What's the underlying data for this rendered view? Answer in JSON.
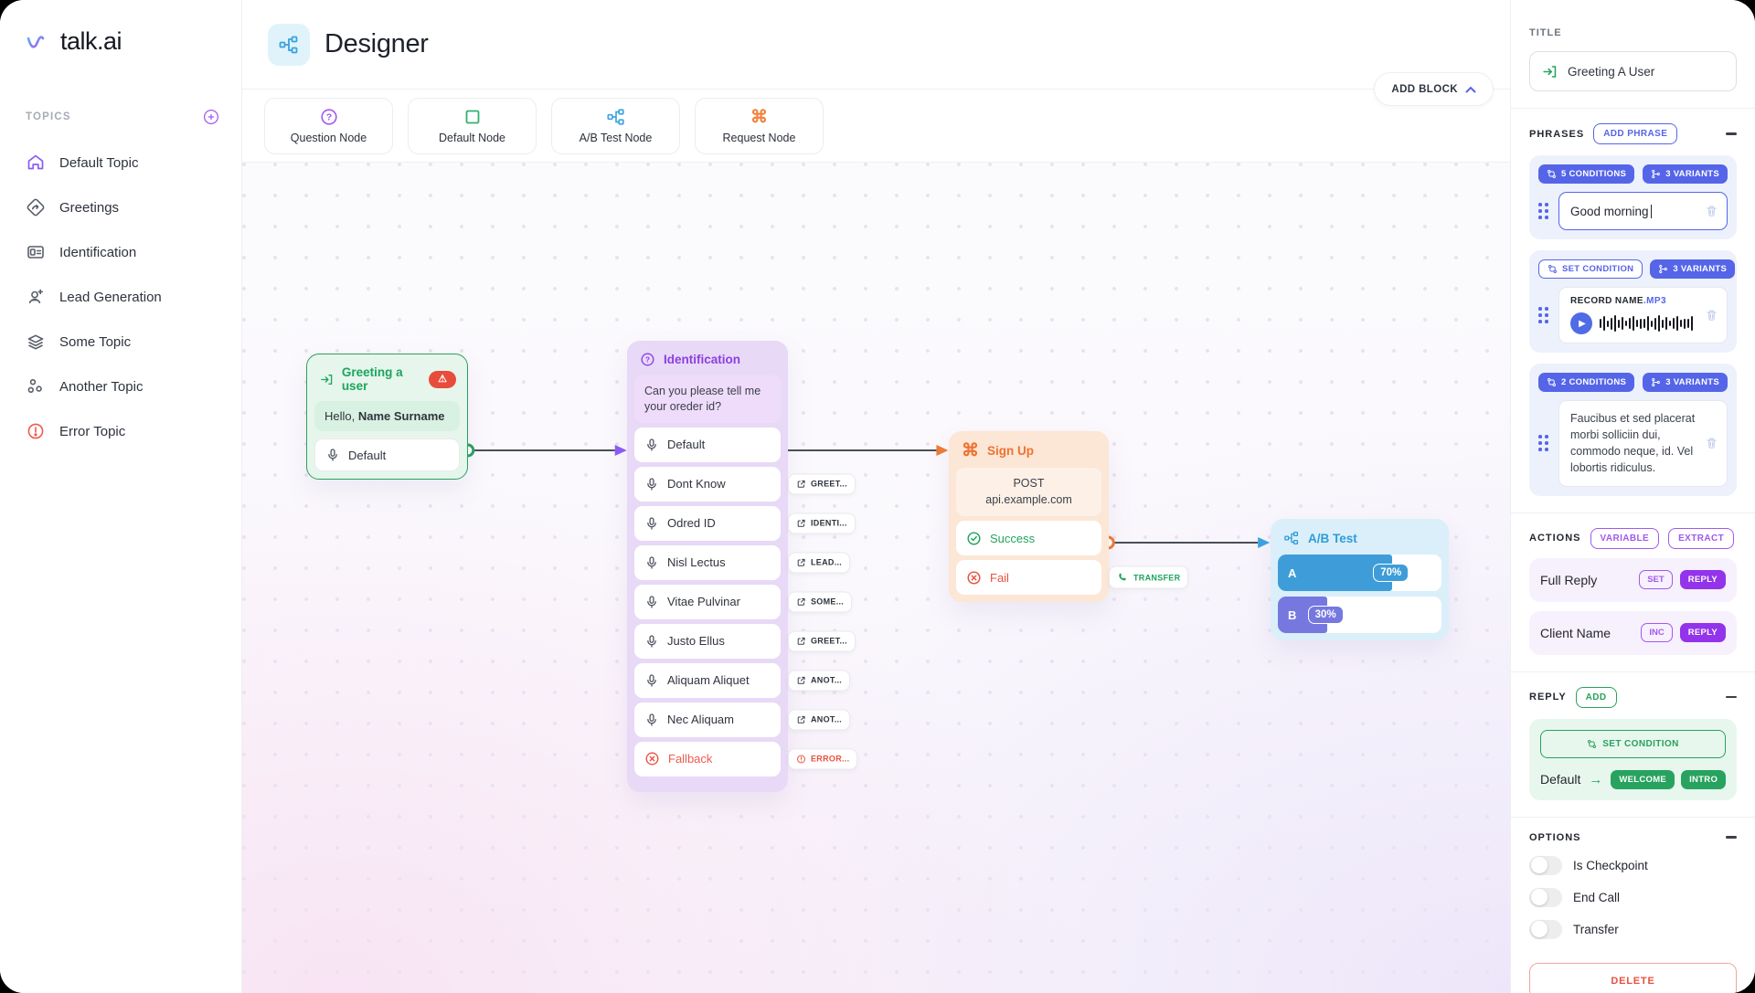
{
  "brand": {
    "name": "talk.ai"
  },
  "header": {
    "title": "Designer",
    "add_block_label": "ADD BLOCK"
  },
  "sidebar": {
    "section_label": "TOPICS",
    "items": [
      {
        "label": "Default Topic"
      },
      {
        "label": "Greetings"
      },
      {
        "label": "Identification"
      },
      {
        "label": "Lead Generation"
      },
      {
        "label": "Some Topic"
      },
      {
        "label": "Another Topic"
      },
      {
        "label": "Error Topic"
      }
    ]
  },
  "palette": [
    {
      "label": "Question Node"
    },
    {
      "label": "Default Node"
    },
    {
      "label": "A/B Test Node"
    },
    {
      "label": "Request Node"
    }
  ],
  "canvas": {
    "greeting_node": {
      "title": "Greeting a user",
      "message_prefix": "Hello, ",
      "message_name": "Name Surname",
      "default_row": "Default"
    },
    "identification_node": {
      "title": "Identification",
      "question": "Can you please tell me your oreder id?",
      "default_row": "Default",
      "rows": [
        {
          "label": "Dont Know",
          "chip": "GREET..."
        },
        {
          "label": "Odred ID",
          "chip": "IDENTI..."
        },
        {
          "label": "Nisl Lectus",
          "chip": "LEAD..."
        },
        {
          "label": "Vitae Pulvinar",
          "chip": "SOME..."
        },
        {
          "label": "Justo Ellus",
          "chip": "GREET..."
        },
        {
          "label": "Aliquam Aliquet",
          "chip": "ANOT..."
        },
        {
          "label": "Nec Aliquam",
          "chip": "ANOT..."
        }
      ],
      "fallback": {
        "label": "Fallback",
        "chip": "ERROR..."
      }
    },
    "signup_node": {
      "title": "Sign Up",
      "request_method": "POST",
      "request_url": "api.example.com",
      "success_label": "Success",
      "fail_label": "Fail",
      "transfer_chip": "TRANSFER"
    },
    "ab_test_node": {
      "title": "A/B Test",
      "bars": [
        {
          "label": "A",
          "pct_label": "70%",
          "value": 70
        },
        {
          "label": "B",
          "pct_label": "30%",
          "value": 30
        }
      ]
    }
  },
  "panel": {
    "title_section": {
      "label": "TITLE",
      "value": "Greeting A User"
    },
    "phrases": {
      "label": "PHRASES",
      "add_button": "ADD PHRASE",
      "card1": {
        "conditions_badge": "5 CONDITIONS",
        "variants_badge": "3 VARIANTS",
        "value": "Good morning"
      },
      "card2": {
        "condition_button": "SET CONDITION",
        "variants_badge": "3 VARIANTS",
        "file_name": "RECORD NAME",
        "file_ext": ".MP3"
      },
      "card3": {
        "conditions_badge": "2 CONDITIONS",
        "variants_badge": "3 VARIANTS",
        "text": "Faucibus et sed placerat morbi solliciin dui, commodo neque, id. Vel lobortis ridiculus."
      }
    },
    "actions": {
      "label": "ACTIONS",
      "variable_button": "VARIABLE",
      "extract_button": "EXTRACT",
      "rows": [
        {
          "name": "Full Reply",
          "tag": "SET",
          "button": "REPLY"
        },
        {
          "name": "Client Name",
          "tag": "INC",
          "button": "REPLY"
        }
      ]
    },
    "reply": {
      "label": "REPLY",
      "add_button": "ADD",
      "condition_button": "SET CONDITION",
      "row_label": "Default",
      "tags": [
        "WELCOME",
        "INTRO"
      ]
    },
    "options": {
      "label": "OPTIONS",
      "toggles": [
        "Is Checkpoint",
        "End Call",
        "Transfer"
      ]
    },
    "delete_button": "DELETE"
  },
  "colors": {
    "accent_blue": "#5565e8",
    "accent_purple": "#9333ea",
    "accent_green": "#27a35f",
    "accent_orange": "#ee7232",
    "accent_red": "#e8503f",
    "node_blue": "#3e9dd8",
    "node_violet": "#7678e0"
  }
}
